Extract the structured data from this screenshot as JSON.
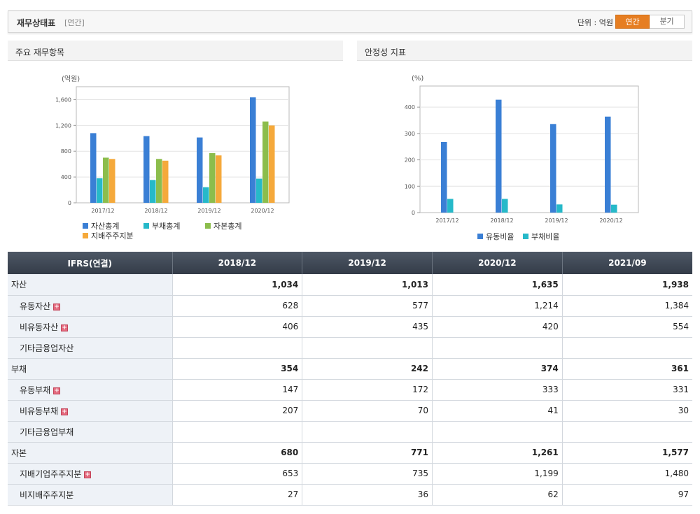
{
  "header": {
    "title": "재무상태표",
    "period_tag": "[연간]",
    "unit": "단위 : 억원",
    "toggle": [
      "연간",
      "분기"
    ]
  },
  "panels": {
    "left_title": "주요 재무항목",
    "right_title": "안정성 지표"
  },
  "chart_data": [
    {
      "type": "bar",
      "unit_label": "(억원)",
      "categories": [
        "2017/12",
        "2018/12",
        "2019/12",
        "2020/12"
      ],
      "ylim": [
        0,
        1800
      ],
      "yticks": [
        0,
        400,
        800,
        1200,
        1600
      ],
      "ytick_labels": [
        "0",
        "400",
        "800",
        "1,200",
        "1,600"
      ],
      "grid": true,
      "legend_position": "bottom-left",
      "series": [
        {
          "name": "자산총계",
          "color": "#3a7fd5",
          "values": [
            1080,
            1034,
            1013,
            1635
          ]
        },
        {
          "name": "부채총계",
          "color": "#26b9c9",
          "values": [
            380,
            354,
            242,
            374
          ]
        },
        {
          "name": "자본총계",
          "color": "#8cbd4c",
          "values": [
            700,
            680,
            771,
            1261
          ]
        },
        {
          "name": "지배주주지분",
          "color": "#f5a93b",
          "values": [
            680,
            653,
            735,
            1199
          ]
        }
      ]
    },
    {
      "type": "bar",
      "unit_label": "(%)",
      "categories": [
        "2017/12",
        "2018/12",
        "2019/12",
        "2020/12"
      ],
      "ylim": [
        0,
        480
      ],
      "yticks": [
        0,
        100,
        200,
        300,
        400
      ],
      "ytick_labels": [
        "0",
        "100",
        "200",
        "300",
        "400"
      ],
      "grid": true,
      "legend_position": "bottom-center",
      "series": [
        {
          "name": "유동비율",
          "color": "#3a7fd5",
          "values": [
            268,
            428,
            336,
            364
          ]
        },
        {
          "name": "부채비율",
          "color": "#26b9c9",
          "values": [
            52,
            52,
            31,
            30
          ]
        }
      ]
    }
  ],
  "table": {
    "header_label": "IFRS(연결)",
    "columns": [
      "2018/12",
      "2019/12",
      "2020/12",
      "2021/09"
    ],
    "rows": [
      {
        "label": "자산",
        "level": "main",
        "plus": false,
        "values": [
          "1,034",
          "1,013",
          "1,635",
          "1,938"
        ]
      },
      {
        "label": "유동자산",
        "level": "sub",
        "plus": true,
        "values": [
          "628",
          "577",
          "1,214",
          "1,384"
        ]
      },
      {
        "label": "비유동자산",
        "level": "sub",
        "plus": true,
        "values": [
          "406",
          "435",
          "420",
          "554"
        ]
      },
      {
        "label": "기타금융업자산",
        "level": "sub",
        "plus": false,
        "values": [
          "",
          "",
          "",
          ""
        ]
      },
      {
        "label": "부채",
        "level": "main",
        "plus": false,
        "values": [
          "354",
          "242",
          "374",
          "361"
        ]
      },
      {
        "label": "유동부채",
        "level": "sub",
        "plus": true,
        "values": [
          "147",
          "172",
          "333",
          "331"
        ]
      },
      {
        "label": "비유동부채",
        "level": "sub",
        "plus": true,
        "values": [
          "207",
          "70",
          "41",
          "30"
        ]
      },
      {
        "label": "기타금융업부채",
        "level": "sub",
        "plus": false,
        "values": [
          "",
          "",
          "",
          ""
        ]
      },
      {
        "label": "자본",
        "level": "main",
        "plus": false,
        "values": [
          "680",
          "771",
          "1,261",
          "1,577"
        ]
      },
      {
        "label": "지배기업주주지분",
        "level": "sub",
        "plus": true,
        "values": [
          "653",
          "735",
          "1,199",
          "1,480"
        ]
      },
      {
        "label": "비지배주주지분",
        "level": "sub",
        "plus": false,
        "values": [
          "27",
          "36",
          "62",
          "97"
        ]
      }
    ]
  }
}
